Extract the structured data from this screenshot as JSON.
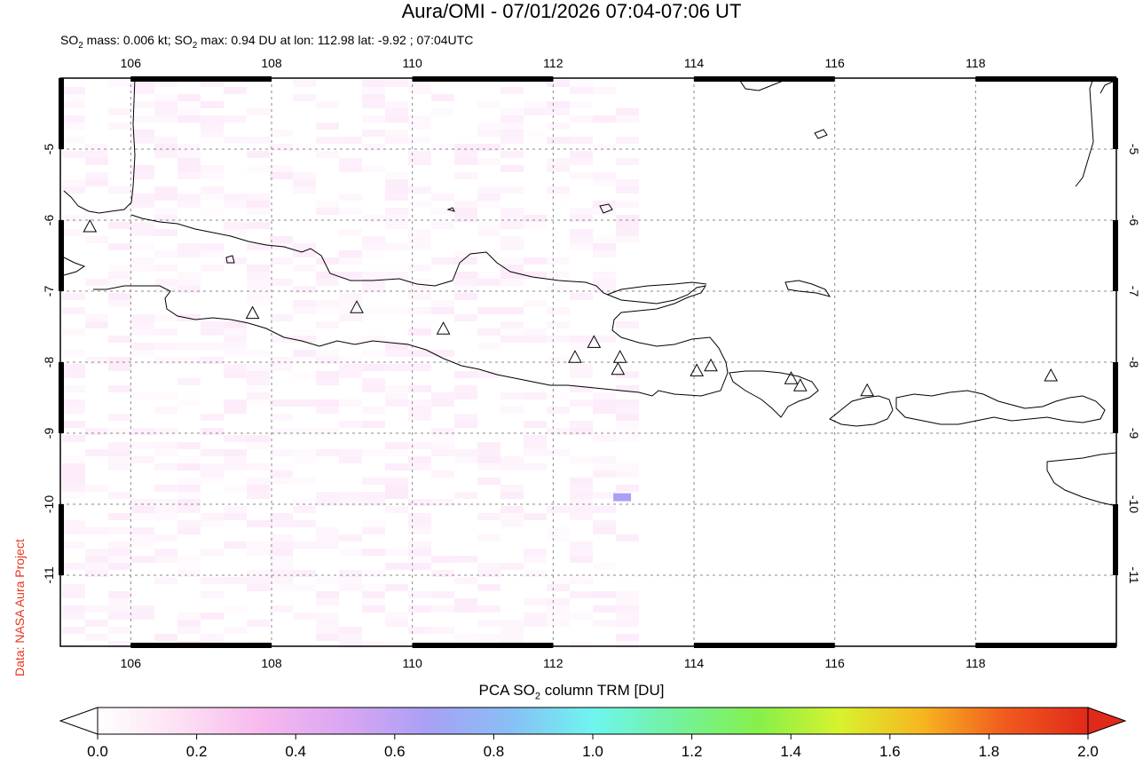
{
  "header": {
    "title": "Aura/OMI - 07/01/2026 07:04-07:06 UT",
    "subtitle_prefix": "SO",
    "subtitle_mid": " mass: 0.006 kt; SO",
    "subtitle_rest": " max: 0.94 DU at lon: 112.98 lat: -9.92 ; 07:04UTC",
    "subscript": "2"
  },
  "credit": "Data: NASA Aura Project",
  "map": {
    "lon_range": [
      105,
      120
    ],
    "lat_range": [
      -12,
      -4
    ],
    "lon_ticks": [
      "106",
      "108",
      "110",
      "112",
      "114",
      "116",
      "118"
    ],
    "lat_ticks": [
      "-5",
      "-6",
      "-7",
      "-8",
      "-9",
      "-10",
      "-11"
    ],
    "gridlines": true,
    "coastline_color": "#000000",
    "volcano_marker": "triangle-icon",
    "volcanoes": [
      {
        "lon": 105.42,
        "lat": -6.1
      },
      {
        "lon": 107.73,
        "lat": -7.32
      },
      {
        "lon": 109.21,
        "lat": -7.24
      },
      {
        "lon": 110.44,
        "lat": -7.54
      },
      {
        "lon": 112.31,
        "lat": -7.94
      },
      {
        "lon": 112.58,
        "lat": -7.73
      },
      {
        "lon": 112.95,
        "lat": -7.94
      },
      {
        "lon": 112.92,
        "lat": -8.11
      },
      {
        "lon": 114.04,
        "lat": -8.13
      },
      {
        "lon": 114.24,
        "lat": -8.06
      },
      {
        "lon": 115.38,
        "lat": -8.24
      },
      {
        "lon": 115.51,
        "lat": -8.34
      },
      {
        "lon": 116.46,
        "lat": -8.41
      },
      {
        "lon": 119.07,
        "lat": -8.2
      }
    ],
    "so2_max_point": {
      "lon": 112.98,
      "lat": -9.92,
      "value": 0.94
    }
  },
  "colorbar": {
    "title_prefix": "PCA SO",
    "title_sub": "2",
    "title_suffix": " column TRM [DU]",
    "ticks": [
      "0.0",
      "0.2",
      "0.4",
      "0.6",
      "0.8",
      "1.0",
      "1.2",
      "1.4",
      "1.6",
      "1.8",
      "2.0"
    ],
    "range": [
      0.0,
      2.0
    ],
    "colors": [
      "#ffffff",
      "#fde0f3",
      "#f7b8ee",
      "#d9a6f2",
      "#a9a0f5",
      "#88bff5",
      "#6ef5f0",
      "#72f29e",
      "#86f04a",
      "#d8f22e",
      "#f7b520",
      "#f05a1e",
      "#e02a1a"
    ]
  }
}
